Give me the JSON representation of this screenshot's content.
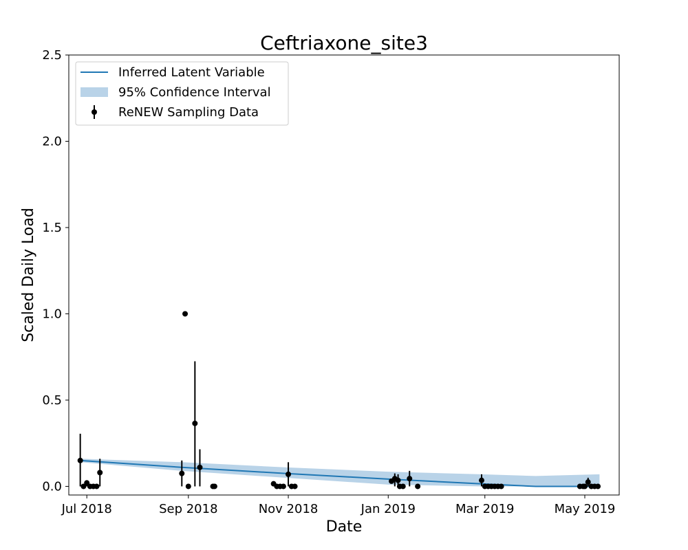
{
  "chart_data": {
    "type": "line",
    "title": "Ceftriaxone_site3",
    "xlabel": "Date",
    "ylabel": "Scaled Daily Load",
    "xlim": [
      "2018-06-20",
      "2019-05-22"
    ],
    "ylim": [
      -0.05,
      2.5
    ],
    "x_ticks": [
      {
        "date": "2018-07-01",
        "label": "Jul 2018"
      },
      {
        "date": "2018-09-01",
        "label": "Sep 2018"
      },
      {
        "date": "2018-11-01",
        "label": "Nov 2018"
      },
      {
        "date": "2019-01-01",
        "label": "Jan 2019"
      },
      {
        "date": "2019-03-01",
        "label": "Mar 2019"
      },
      {
        "date": "2019-05-01",
        "label": "May 2019"
      }
    ],
    "y_ticks": [
      {
        "value": 0.0,
        "label": "0.0"
      },
      {
        "value": 0.5,
        "label": "0.5"
      },
      {
        "value": 1.0,
        "label": "1.0"
      },
      {
        "value": 1.5,
        "label": "1.5"
      },
      {
        "value": 2.0,
        "label": "2.0"
      },
      {
        "value": 2.5,
        "label": "2.5"
      }
    ],
    "grid": false,
    "legend": {
      "position": "top-left",
      "entries": [
        {
          "label": "Inferred Latent Variable",
          "kind": "line",
          "color": "#1f77b4"
        },
        {
          "label": "95% Confidence Interval",
          "kind": "band",
          "color": "#b9d3e8"
        },
        {
          "label": "ReNEW Sampling Data",
          "kind": "errorbar",
          "color": "#000000"
        }
      ]
    },
    "series": [
      {
        "name": "Inferred Latent Variable",
        "kind": "line",
        "color": "#1f77b4",
        "points": [
          {
            "x": "2018-06-27",
            "y": 0.15
          },
          {
            "x": "2018-08-28",
            "y": 0.11
          },
          {
            "x": "2018-10-30",
            "y": 0.075
          },
          {
            "x": "2019-01-01",
            "y": 0.042
          },
          {
            "x": "2019-02-27",
            "y": 0.015
          },
          {
            "x": "2019-04-01",
            "y": 0.0
          },
          {
            "x": "2019-05-10",
            "y": 0.0
          }
        ]
      },
      {
        "name": "95% Confidence Interval",
        "kind": "band",
        "color": "#b9d3e8",
        "points": [
          {
            "x": "2018-06-27",
            "lower": 0.14,
            "upper": 0.16
          },
          {
            "x": "2018-08-28",
            "lower": 0.09,
            "upper": 0.14
          },
          {
            "x": "2018-10-30",
            "lower": 0.05,
            "upper": 0.11
          },
          {
            "x": "2019-01-01",
            "lower": 0.01,
            "upper": 0.085
          },
          {
            "x": "2019-02-27",
            "lower": 0.0,
            "upper": 0.07
          },
          {
            "x": "2019-04-01",
            "lower": 0.0,
            "upper": 0.06
          },
          {
            "x": "2019-05-10",
            "lower": 0.0,
            "upper": 0.07
          }
        ]
      },
      {
        "name": "ReNEW Sampling Data",
        "kind": "errorbar",
        "color": "#000000",
        "points": [
          {
            "x": "2018-06-27",
            "y": 0.15,
            "lower": 0.0,
            "upper": 0.305
          },
          {
            "x": "2018-06-29",
            "y": 0.0
          },
          {
            "x": "2018-07-01",
            "y": 0.02,
            "lower": 0.0,
            "upper": 0.035
          },
          {
            "x": "2018-07-03",
            "y": 0.0
          },
          {
            "x": "2018-07-05",
            "y": 0.0
          },
          {
            "x": "2018-07-07",
            "y": 0.0
          },
          {
            "x": "2018-07-09",
            "y": 0.08,
            "lower": 0.0,
            "upper": 0.16
          },
          {
            "x": "2018-08-28",
            "y": 0.075,
            "lower": 0.0,
            "upper": 0.15
          },
          {
            "x": "2018-08-30",
            "y": 1.0
          },
          {
            "x": "2018-09-01",
            "y": 0.0
          },
          {
            "x": "2018-09-05",
            "y": 0.365,
            "lower": 0.0,
            "upper": 0.725
          },
          {
            "x": "2018-09-08",
            "y": 0.11,
            "lower": 0.0,
            "upper": 0.215
          },
          {
            "x": "2018-09-16",
            "y": 0.0
          },
          {
            "x": "2018-09-17",
            "y": 0.0
          },
          {
            "x": "2018-10-23",
            "y": 0.015,
            "lower": 0.0,
            "upper": 0.025
          },
          {
            "x": "2018-10-25",
            "y": 0.0
          },
          {
            "x": "2018-10-27",
            "y": 0.0
          },
          {
            "x": "2018-10-29",
            "y": 0.0
          },
          {
            "x": "2018-11-01",
            "y": 0.07,
            "lower": 0.0,
            "upper": 0.14
          },
          {
            "x": "2018-11-03",
            "y": 0.0
          },
          {
            "x": "2018-11-05",
            "y": 0.0
          },
          {
            "x": "2019-01-03",
            "y": 0.03
          },
          {
            "x": "2019-01-05",
            "y": 0.045,
            "lower": 0.0,
            "upper": 0.075
          },
          {
            "x": "2019-01-07",
            "y": 0.035,
            "lower": 0.0,
            "upper": 0.07
          },
          {
            "x": "2019-01-08",
            "y": 0.0
          },
          {
            "x": "2019-01-10",
            "y": 0.0
          },
          {
            "x": "2019-01-14",
            "y": 0.045,
            "lower": 0.0,
            "upper": 0.09
          },
          {
            "x": "2019-01-19",
            "y": 0.0
          },
          {
            "x": "2019-02-27",
            "y": 0.035,
            "lower": 0.0,
            "upper": 0.07
          },
          {
            "x": "2019-03-01",
            "y": 0.0
          },
          {
            "x": "2019-03-03",
            "y": 0.0
          },
          {
            "x": "2019-03-05",
            "y": 0.0
          },
          {
            "x": "2019-03-07",
            "y": 0.0
          },
          {
            "x": "2019-03-09",
            "y": 0.0
          },
          {
            "x": "2019-03-11",
            "y": 0.0
          },
          {
            "x": "2019-04-28",
            "y": 0.0
          },
          {
            "x": "2019-04-30",
            "y": 0.0
          },
          {
            "x": "2019-05-01",
            "y": 0.0
          },
          {
            "x": "2019-05-03",
            "y": 0.025,
            "lower": 0.0,
            "upper": 0.05
          },
          {
            "x": "2019-05-05",
            "y": 0.0
          },
          {
            "x": "2019-05-07",
            "y": 0.0
          },
          {
            "x": "2019-05-09",
            "y": 0.0
          }
        ]
      }
    ]
  }
}
